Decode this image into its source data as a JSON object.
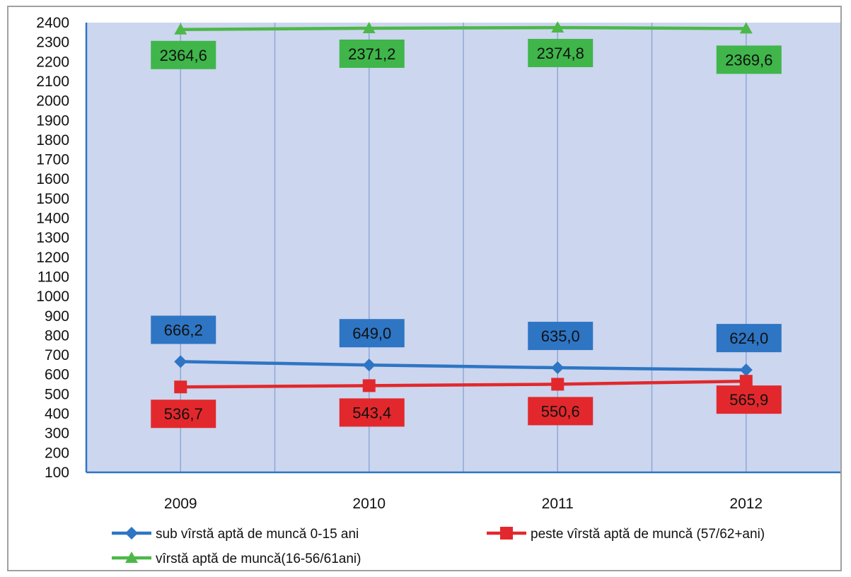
{
  "chart_data": {
    "type": "line",
    "categories": [
      "2009",
      "2010",
      "2011",
      "2012"
    ],
    "ylim": [
      100,
      2400
    ],
    "yticks": [
      100,
      200,
      300,
      400,
      500,
      600,
      700,
      800,
      900,
      1000,
      1100,
      1200,
      1300,
      1400,
      1500,
      1600,
      1700,
      1800,
      1900,
      2000,
      2100,
      2200,
      2300,
      2400
    ],
    "grid": "vertical",
    "legend_position": "bottom",
    "series": [
      {
        "name": "sub vîrstă aptă de muncă 0-15 ani",
        "values": [
          666.2,
          649.0,
          635.0,
          624.0
        ],
        "labels": [
          "666,2",
          "649,0",
          "635,0",
          "624,0"
        ],
        "color": "#2e75c4",
        "label_bg": "#2e75c4",
        "marker": "diamond",
        "label_side": "above"
      },
      {
        "name": "peste vîrstă aptă de muncă (57/62+ani)",
        "values": [
          536.7,
          543.4,
          550.6,
          565.9
        ],
        "labels": [
          "536,7",
          "543,4",
          "550,6",
          "565,9"
        ],
        "color": "#e2282c",
        "label_bg": "#e2282c",
        "marker": "square",
        "label_side": "below"
      },
      {
        "name": "vîrstă aptă de muncă(16-56/61ani)",
        "values": [
          2364.6,
          2371.2,
          2374.8,
          2369.6
        ],
        "labels": [
          "2364,6",
          "2371,2",
          "2374,8",
          "2369,6"
        ],
        "color": "#4cb848",
        "label_bg": "#3fb54a",
        "marker": "triangle",
        "label_side": "below"
      }
    ],
    "colors": {
      "plot_bg": "#ccd6ee",
      "gridline": "#8fa8d6",
      "axis": "#2e75c4"
    }
  }
}
